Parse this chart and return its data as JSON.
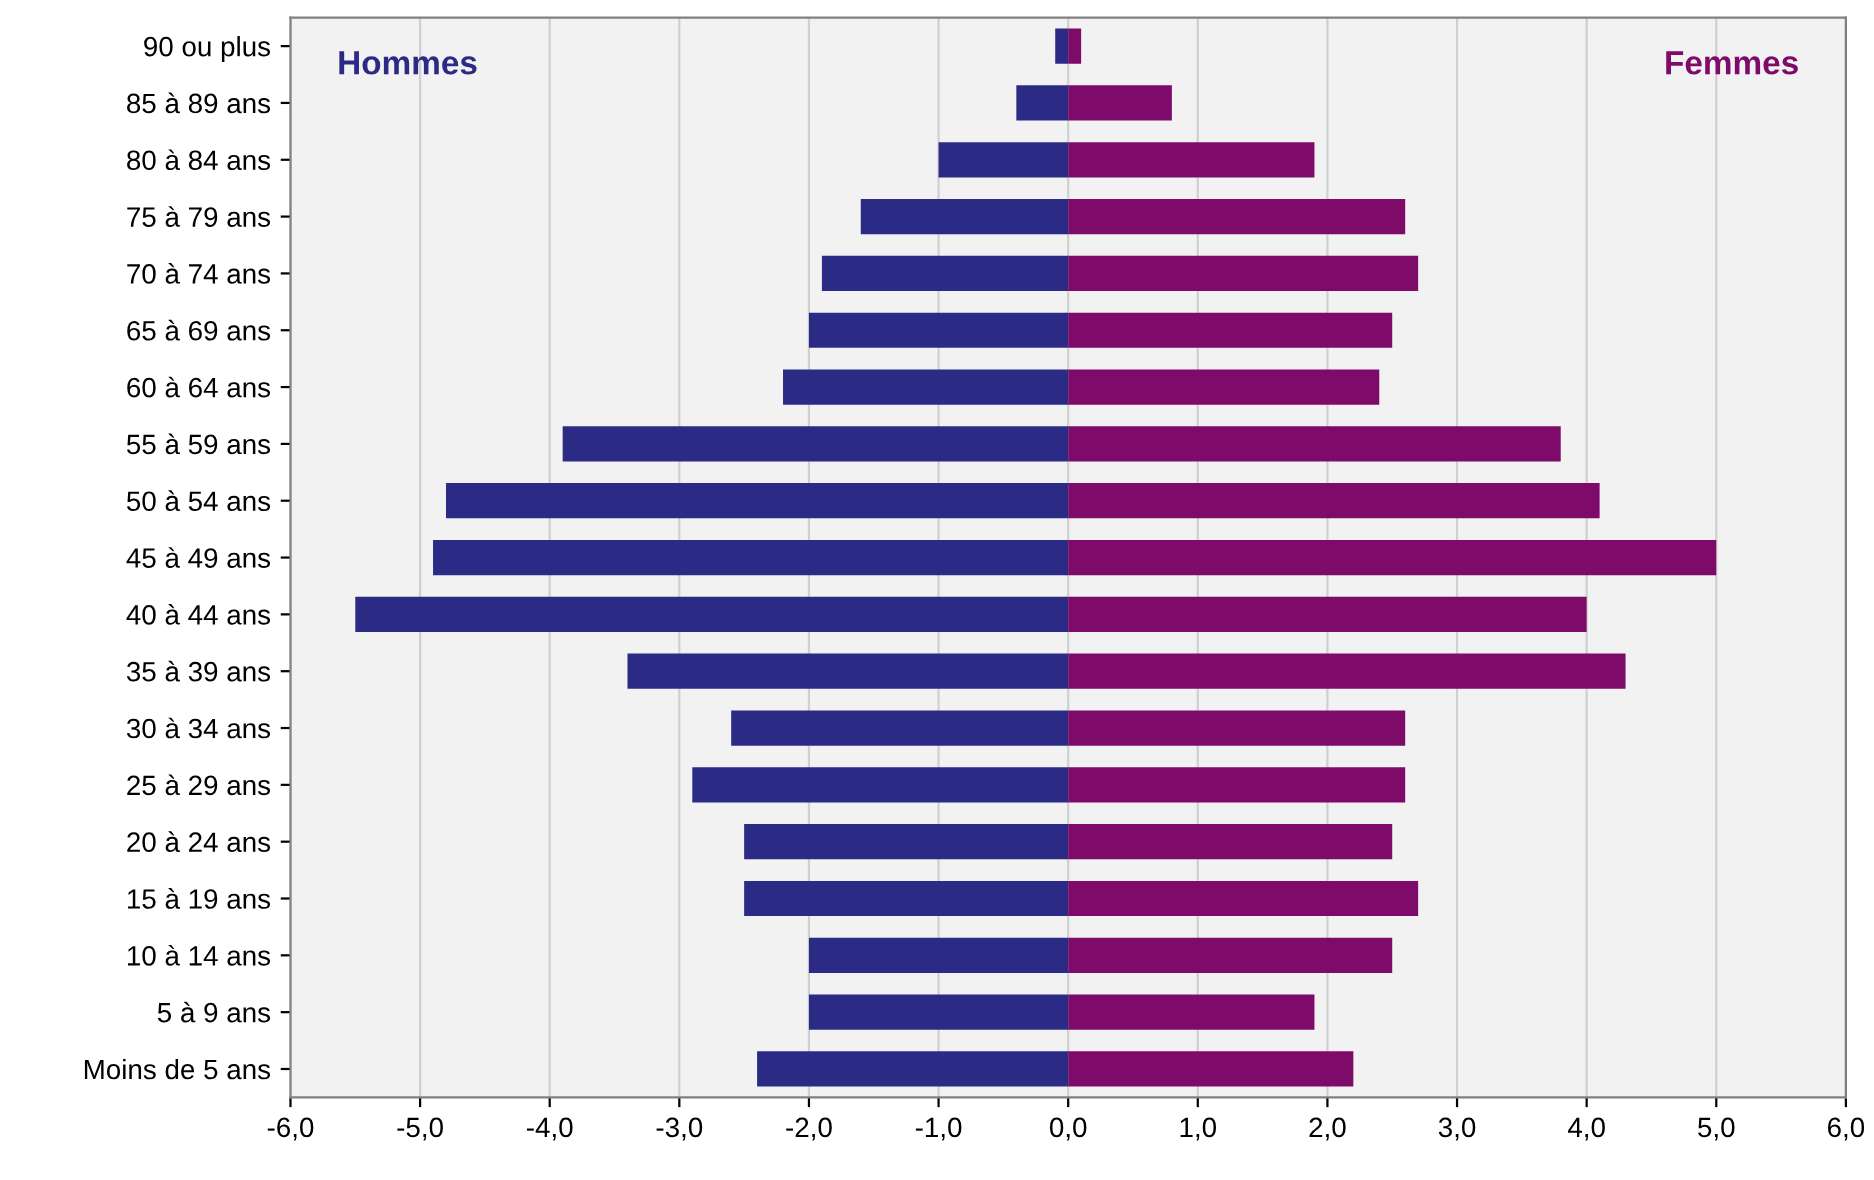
{
  "chart_data": {
    "type": "bar",
    "orientation": "horizontal",
    "stacked": true,
    "grid": "x",
    "categories": [
      "90 ou plus",
      "85 à 89 ans",
      "80 à 84 ans",
      "75 à 79 ans",
      "70 à 74 ans",
      "65 à 69 ans",
      "60 à 64 ans",
      "55 à 59 ans",
      "50 à 54 ans",
      "45 à 49 ans",
      "40 à 44 ans",
      "35 à 39 ans",
      "30 à 34 ans",
      "25 à 29 ans",
      "20 à 24 ans",
      "15 à 19 ans",
      "10 à 14 ans",
      "5 à 9 ans",
      "Moins de 5 ans"
    ],
    "series": [
      {
        "name": "Hommes",
        "color": "#2b2b86",
        "values": [
          -0.1,
          -0.4,
          -1.0,
          -1.6,
          -1.9,
          -2.0,
          -2.2,
          -3.9,
          -4.8,
          -4.9,
          -5.5,
          -3.4,
          -2.6,
          -2.9,
          -2.5,
          -2.5,
          -2.0,
          -2.0,
          -2.4
        ]
      },
      {
        "name": "Femmes",
        "color": "#7e0a6a",
        "values": [
          0.1,
          0.8,
          1.9,
          2.6,
          2.7,
          2.5,
          2.4,
          3.8,
          4.1,
          5.0,
          4.0,
          4.3,
          2.6,
          2.6,
          2.5,
          2.7,
          2.5,
          1.9,
          2.2
        ]
      }
    ],
    "xlim": [
      -6,
      6
    ],
    "xticks": [
      {
        "value": -6,
        "label": "-6,0"
      },
      {
        "value": -5,
        "label": "-5,0"
      },
      {
        "value": -4,
        "label": "-4,0"
      },
      {
        "value": -3,
        "label": "-3,0"
      },
      {
        "value": -2,
        "label": "-2,0"
      },
      {
        "value": -1,
        "label": "-1,0"
      },
      {
        "value": 0,
        "label": "0,0"
      },
      {
        "value": 1,
        "label": "1,0"
      },
      {
        "value": 2,
        "label": "2,0"
      },
      {
        "value": 3,
        "label": "3,0"
      },
      {
        "value": 4,
        "label": "4,0"
      },
      {
        "value": 5,
        "label": "5,0"
      },
      {
        "value": 6,
        "label": "6,0"
      }
    ]
  }
}
